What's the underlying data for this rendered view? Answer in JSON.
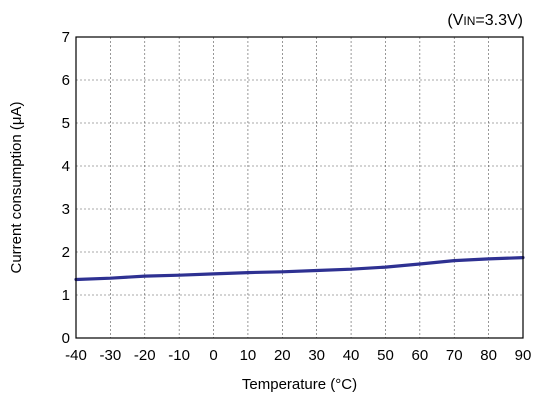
{
  "chart_data": {
    "type": "line",
    "title": "",
    "annotation": {
      "open": "(V",
      "subscript": "IN",
      "close": "=3.3V)"
    },
    "xlabel": "Temperature (°C)",
    "ylabel": "Current consumption (μA)",
    "xlim": [
      -40,
      90
    ],
    "ylim": [
      0,
      7
    ],
    "x_ticks": [
      "-40",
      "-30",
      "-20",
      "-10",
      "0",
      "10",
      "20",
      "30",
      "40",
      "50",
      "60",
      "70",
      "80",
      "90"
    ],
    "y_ticks": [
      "0",
      "1",
      "2",
      "3",
      "4",
      "5",
      "6",
      "7"
    ],
    "grid": true,
    "series": [
      {
        "color": "#2e3192",
        "x": [
          -40,
          -30,
          -20,
          -10,
          0,
          10,
          20,
          30,
          40,
          50,
          60,
          70,
          80,
          90
        ],
        "y": [
          1.36,
          1.39,
          1.44,
          1.46,
          1.49,
          1.52,
          1.54,
          1.57,
          1.6,
          1.65,
          1.72,
          1.8,
          1.84,
          1.87
        ]
      }
    ]
  }
}
